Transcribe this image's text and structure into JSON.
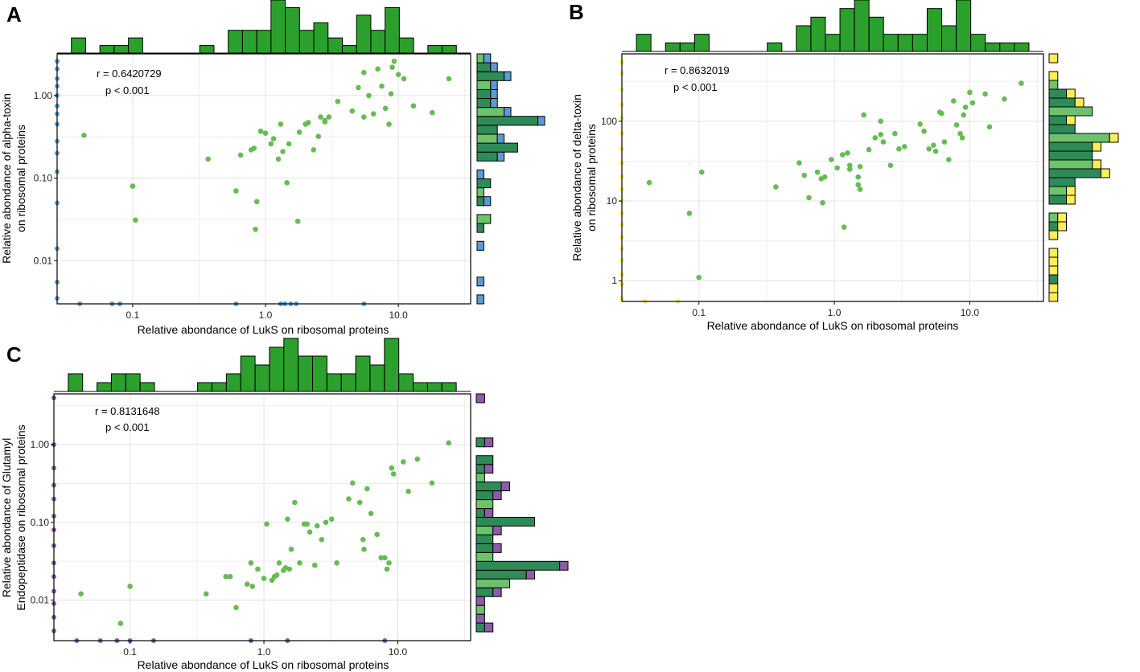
{
  "figure": {
    "x_axis_label": "Relative abondance of LukS on ribosomal proteins",
    "x_ticks": [
      {
        "value": 0.1,
        "label": "0.1"
      },
      {
        "value": 1,
        "label": "1.0"
      },
      {
        "value": 10,
        "label": "10.0"
      }
    ]
  },
  "chart_data": [
    {
      "id": "A",
      "type": "scatter",
      "panel_label": "A",
      "ylabel_lines": [
        "Relative abondance of alpha-toxin",
        "on ribosomal proteins"
      ],
      "r_text": "r = 0.6420729",
      "p_text": "p < 0.001",
      "xlim": [
        0.027,
        35
      ],
      "ylim": [
        0.003,
        3.2
      ],
      "y_ticks": [
        {
          "value": 0.01,
          "label": "0.01"
        },
        {
          "value": 0.1,
          "label": "0.10"
        },
        {
          "value": 1,
          "label": "1.00"
        }
      ],
      "marginal_color": "#5b9bd5",
      "points": [
        [
          0.043,
          0.33
        ],
        [
          0.1,
          0.08
        ],
        [
          0.105,
          0.031
        ],
        [
          0.37,
          0.17
        ],
        [
          0.6,
          0.07
        ],
        [
          0.65,
          0.19
        ],
        [
          0.78,
          0.22
        ],
        [
          0.82,
          0.23
        ],
        [
          0.84,
          0.024
        ],
        [
          0.86,
          0.052
        ],
        [
          0.92,
          0.37
        ],
        [
          1.0,
          0.35
        ],
        [
          1.1,
          0.26
        ],
        [
          1.15,
          0.3
        ],
        [
          1.25,
          0.17
        ],
        [
          1.3,
          0.45
        ],
        [
          1.35,
          0.21
        ],
        [
          1.45,
          0.088
        ],
        [
          1.5,
          0.26
        ],
        [
          1.75,
          0.03
        ],
        [
          1.8,
          0.36
        ],
        [
          2.0,
          0.45
        ],
        [
          2.1,
          0.47
        ],
        [
          2.3,
          0.22
        ],
        [
          2.5,
          0.32
        ],
        [
          2.6,
          0.55
        ],
        [
          2.8,
          0.5
        ],
        [
          3.0,
          0.55
        ],
        [
          3.5,
          0.85
        ],
        [
          4.5,
          0.65
        ],
        [
          5.0,
          1.25
        ],
        [
          5.5,
          0.55
        ],
        [
          6.0,
          1.0
        ],
        [
          6.5,
          0.6
        ],
        [
          7.0,
          2.1
        ],
        [
          7.5,
          1.3
        ],
        [
          8.0,
          0.7
        ],
        [
          8.5,
          0.45
        ],
        [
          8.8,
          1.05
        ],
        [
          9.0,
          2.2
        ],
        [
          9.3,
          2.6
        ],
        [
          10.0,
          1.8
        ],
        [
          11.0,
          1.6
        ],
        [
          13.0,
          0.75
        ],
        [
          18.0,
          0.62
        ],
        [
          24.0,
          1.6
        ],
        [
          5.5,
          1.9
        ],
        [
          2.8,
          0.48
        ]
      ],
      "y_edge_points": [
        0.0035,
        0.0055,
        0.014,
        0.05,
        0.12,
        0.2,
        0.28,
        0.45,
        0.6,
        0.75,
        1.0,
        1.3,
        1.6,
        2.1,
        2.6
      ],
      "x_edge_points": [
        0.04,
        0.07,
        0.08,
        0.6,
        1.3,
        1.4,
        1.55,
        1.7,
        5.5
      ]
    },
    {
      "id": "B",
      "type": "scatter",
      "panel_label": "B",
      "ylabel_lines": [
        "Relative abondance of delta-toxin",
        "on ribosomal proteins"
      ],
      "r_text": "r = 0.8632019",
      "p_text": "p < 0.001",
      "xlim": [
        0.027,
        35
      ],
      "ylim": [
        0.55,
        700
      ],
      "y_ticks": [
        {
          "value": 1,
          "label": "1"
        },
        {
          "value": 10,
          "label": "10"
        },
        {
          "value": 100,
          "label": "100"
        }
      ],
      "marginal_color": "#ffee55",
      "points": [
        [
          0.043,
          17
        ],
        [
          0.085,
          7
        ],
        [
          0.1,
          1.1
        ],
        [
          0.105,
          23
        ],
        [
          0.37,
          15
        ],
        [
          0.55,
          30
        ],
        [
          0.6,
          21
        ],
        [
          0.65,
          11
        ],
        [
          0.75,
          23
        ],
        [
          0.8,
          19
        ],
        [
          0.82,
          9.5
        ],
        [
          0.85,
          20
        ],
        [
          0.95,
          33
        ],
        [
          1.05,
          26
        ],
        [
          1.15,
          38
        ],
        [
          1.18,
          4.7
        ],
        [
          1.25,
          40
        ],
        [
          1.3,
          28
        ],
        [
          1.3,
          25
        ],
        [
          1.5,
          20
        ],
        [
          1.5,
          16
        ],
        [
          1.55,
          14
        ],
        [
          1.55,
          27
        ],
        [
          1.65,
          120
        ],
        [
          1.8,
          44
        ],
        [
          2.0,
          62
        ],
        [
          2.2,
          100
        ],
        [
          2.3,
          55
        ],
        [
          2.6,
          28
        ],
        [
          2.8,
          70
        ],
        [
          3.0,
          45
        ],
        [
          3.3,
          48
        ],
        [
          4.3,
          92
        ],
        [
          4.6,
          75
        ],
        [
          5.0,
          45
        ],
        [
          5.4,
          50
        ],
        [
          5.6,
          42
        ],
        [
          6.0,
          130
        ],
        [
          6.2,
          125
        ],
        [
          6.5,
          55
        ],
        [
          7.0,
          33
        ],
        [
          7.6,
          180
        ],
        [
          8.0,
          90
        ],
        [
          8.5,
          70
        ],
        [
          8.8,
          62
        ],
        [
          9.0,
          120
        ],
        [
          9.3,
          150
        ],
        [
          10.0,
          230
        ],
        [
          10.5,
          170
        ],
        [
          13.0,
          220
        ],
        [
          14.0,
          85
        ],
        [
          18.0,
          190
        ],
        [
          24.0,
          300
        ],
        [
          2.2,
          68
        ]
      ],
      "y_edge_points": [
        0.6,
        0.9,
        1.2,
        1.8,
        2.5,
        3.5,
        5,
        7,
        10,
        14,
        20,
        30,
        45,
        70,
        110,
        160,
        250,
        400,
        550
      ],
      "x_edge_points": [
        0.04,
        0.07
      ]
    },
    {
      "id": "C",
      "type": "scatter",
      "panel_label": "C",
      "ylabel_lines": [
        "Relative abondance of Glutamyl",
        "Endopeptidase on ribosomal proteins"
      ],
      "r_text": "r = 0.8131648",
      "p_text": "p < 0.001",
      "xlim": [
        0.027,
        35
      ],
      "ylim": [
        0.003,
        4.5
      ],
      "y_ticks": [
        {
          "value": 0.01,
          "label": "0.01"
        },
        {
          "value": 0.1,
          "label": "0.10"
        },
        {
          "value": 1,
          "label": "1.00"
        }
      ],
      "marginal_color": "#8e5ba8",
      "points": [
        [
          0.043,
          0.012
        ],
        [
          0.085,
          0.005
        ],
        [
          0.1,
          0.015
        ],
        [
          0.37,
          0.012
        ],
        [
          0.52,
          0.02
        ],
        [
          0.56,
          0.02
        ],
        [
          0.62,
          0.008
        ],
        [
          0.75,
          0.016
        ],
        [
          0.8,
          0.03
        ],
        [
          0.82,
          0.015
        ],
        [
          0.9,
          0.025
        ],
        [
          1.0,
          0.019
        ],
        [
          1.05,
          0.095
        ],
        [
          1.15,
          0.018
        ],
        [
          1.2,
          0.02
        ],
        [
          1.25,
          0.021
        ],
        [
          1.3,
          0.03
        ],
        [
          1.4,
          0.024
        ],
        [
          1.45,
          0.026
        ],
        [
          1.5,
          0.11
        ],
        [
          1.55,
          0.025
        ],
        [
          1.6,
          0.045
        ],
        [
          1.7,
          0.18
        ],
        [
          1.85,
          0.03
        ],
        [
          2.0,
          0.095
        ],
        [
          2.1,
          0.095
        ],
        [
          2.2,
          0.075
        ],
        [
          2.4,
          0.028
        ],
        [
          2.5,
          0.09
        ],
        [
          2.7,
          0.06
        ],
        [
          2.9,
          0.1
        ],
        [
          3.2,
          0.11
        ],
        [
          3.5,
          0.03
        ],
        [
          4.3,
          0.2
        ],
        [
          4.6,
          0.32
        ],
        [
          5.2,
          0.18
        ],
        [
          5.5,
          0.06
        ],
        [
          5.6,
          0.045
        ],
        [
          5.9,
          0.27
        ],
        [
          6.3,
          0.13
        ],
        [
          7.0,
          0.07
        ],
        [
          7.5,
          0.035
        ],
        [
          8.0,
          0.035
        ],
        [
          8.3,
          0.025
        ],
        [
          8.6,
          0.03
        ],
        [
          9.0,
          0.5
        ],
        [
          9.3,
          0.42
        ],
        [
          11.0,
          0.6
        ],
        [
          12.0,
          0.25
        ],
        [
          14.0,
          0.65
        ],
        [
          18.0,
          0.32
        ],
        [
          24.0,
          1.05
        ]
      ],
      "y_edge_points": [
        0.004,
        0.006,
        0.009,
        0.013,
        0.02,
        0.03,
        0.05,
        0.08,
        0.12,
        0.2,
        0.3,
        0.5,
        1.0,
        4.0
      ],
      "x_edge_points": [
        0.04,
        0.06,
        0.08,
        0.1,
        0.15,
        0.8,
        1.5,
        8.0
      ]
    }
  ]
}
